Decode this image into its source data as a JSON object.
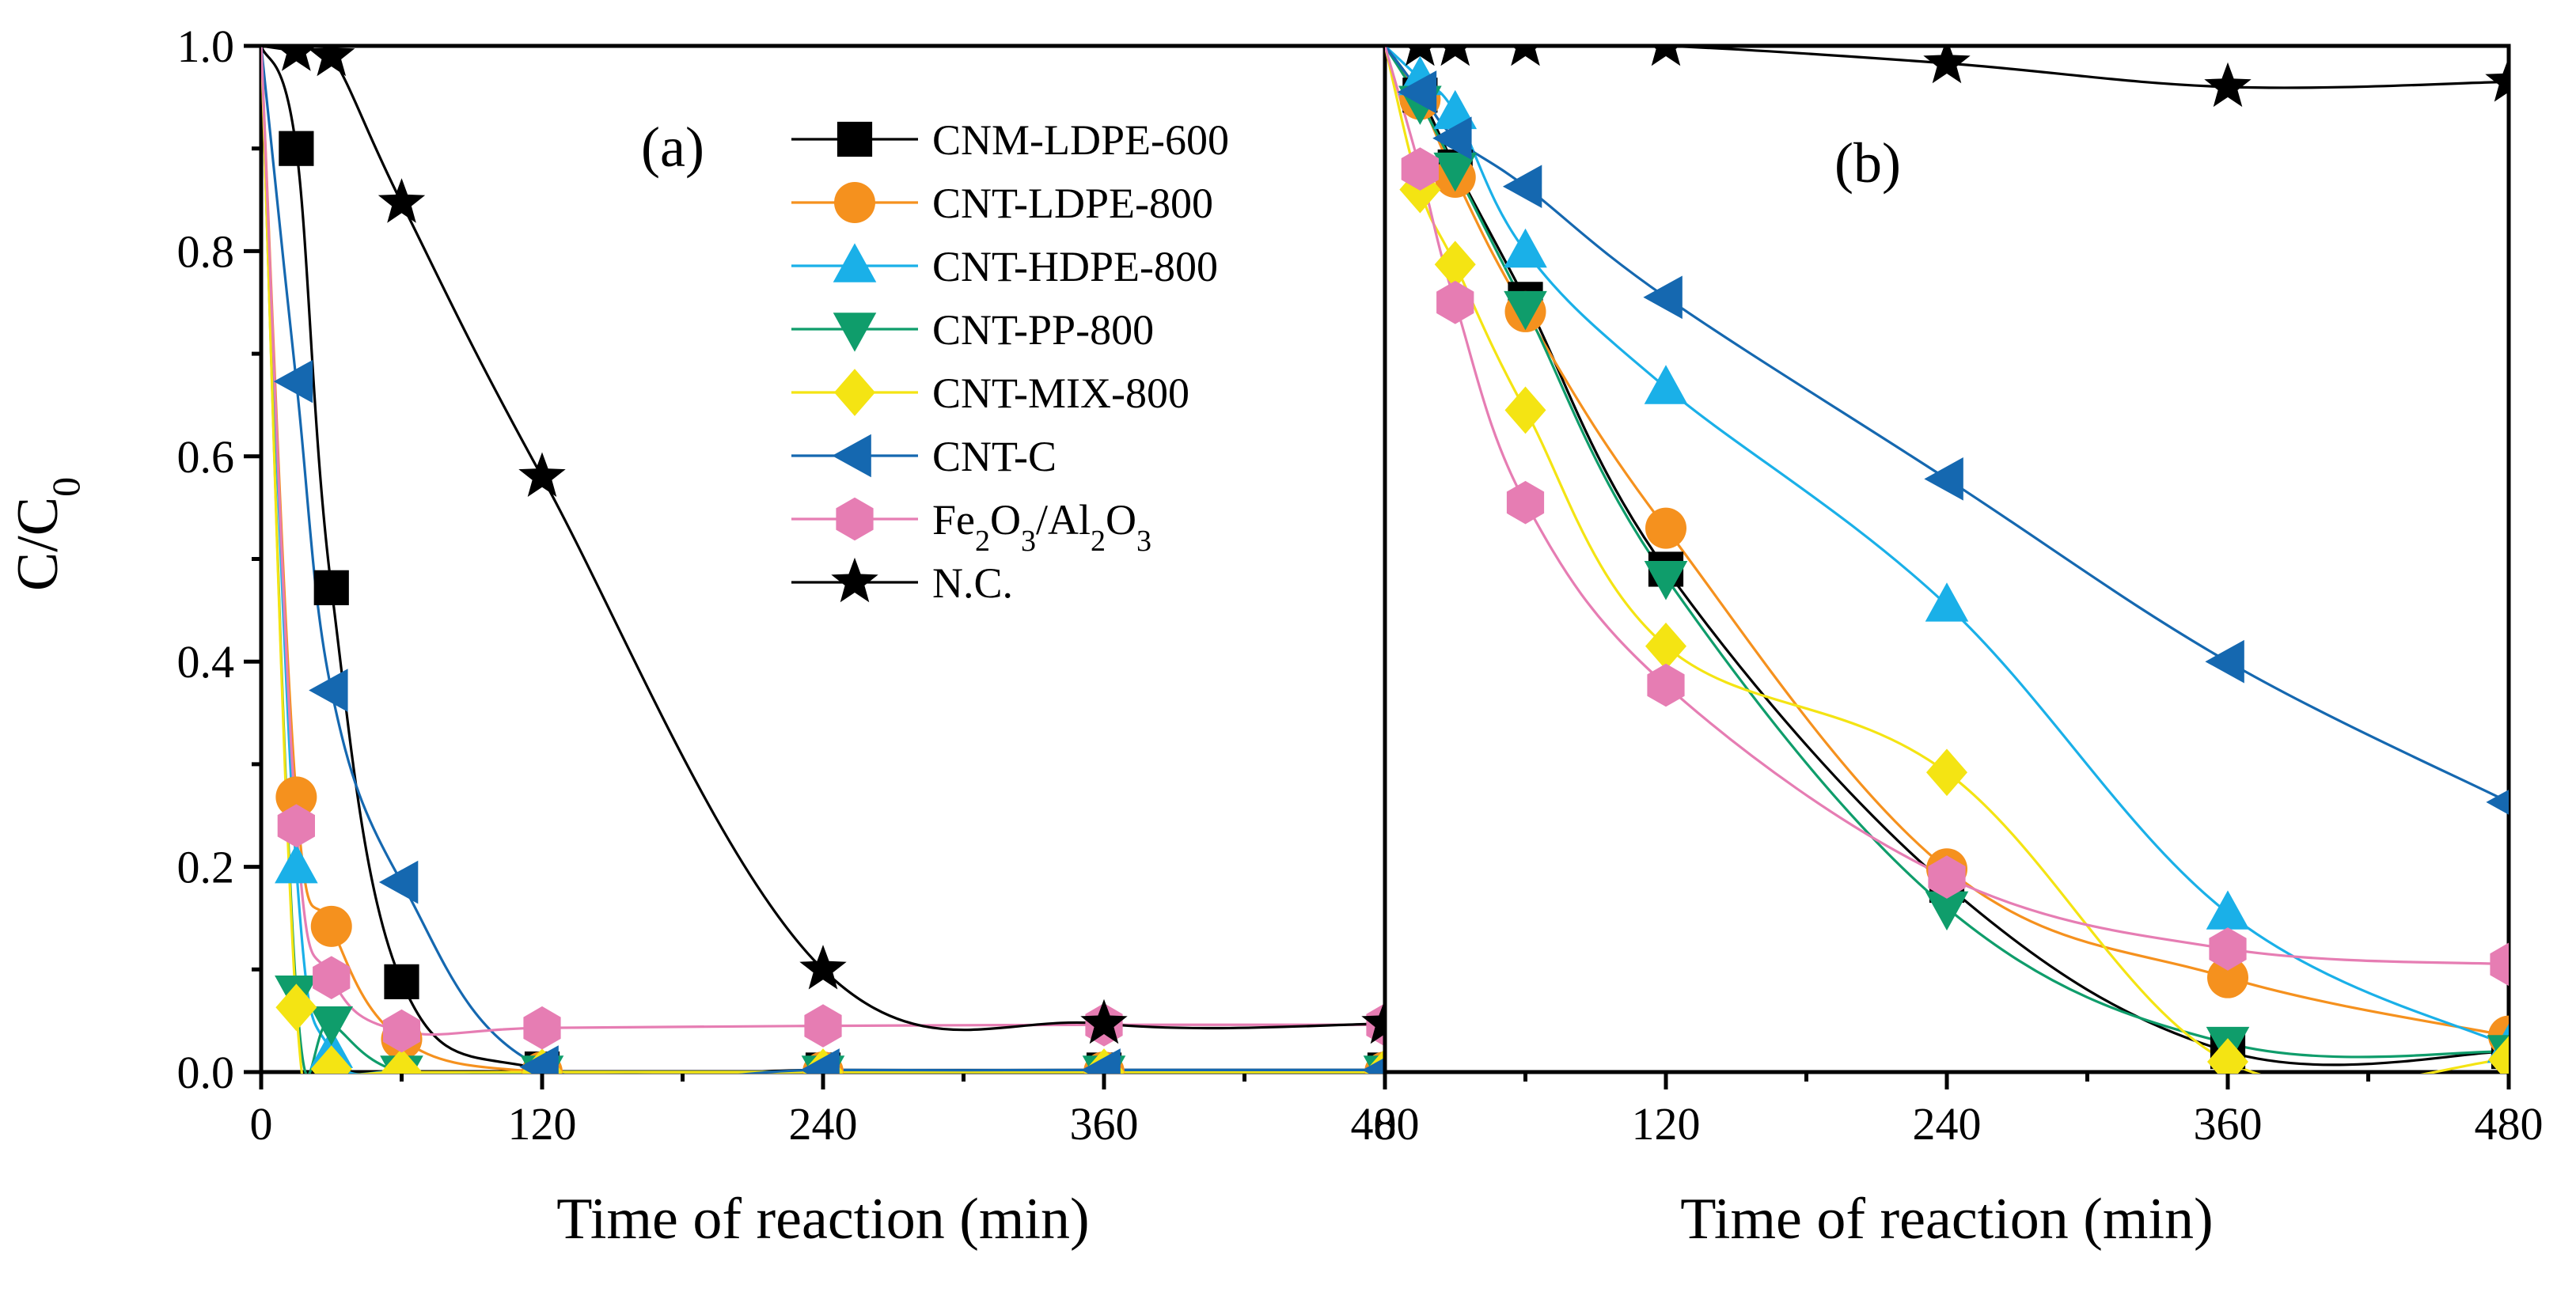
{
  "chart_data": {
    "type": "line",
    "ylabel": "C/C0",
    "ylabel_main": "C/C",
    "ylabel_sub": "0",
    "ylim": [
      0,
      1.0
    ],
    "yticks": [
      "0.0",
      "0.2",
      "0.4",
      "0.6",
      "0.8",
      "1.0"
    ],
    "legend_placement": "top-right of panel (a)",
    "panels": [
      {
        "label": "(a)",
        "xlabel": "Time of reaction (min)",
        "xlim": [
          0,
          480
        ],
        "xticks": [
          "0",
          "120",
          "240",
          "360",
          "480"
        ],
        "x": [
          0,
          15,
          30,
          60,
          120,
          240,
          360,
          480
        ],
        "series": [
          {
            "name": "CNM-LDPE-600",
            "values": [
              1.0,
              0.9,
              0.472,
              0.088,
              0.003,
              0.002,
              0.002,
              0.002
            ]
          },
          {
            "name": "CNT-LDPE-800",
            "values": [
              1.0,
              0.268,
              0.142,
              0.032,
              0.0,
              0.0,
              0.0,
              0.0
            ]
          },
          {
            "name": "CNT-HDPE-800",
            "values": [
              1.0,
              0.2,
              0.02,
              0.0,
              0.0,
              0.0,
              0.0,
              0.0
            ]
          },
          {
            "name": "CNT-PP-800",
            "values": [
              1.0,
              0.078,
              0.048,
              0.0,
              0.0,
              0.0,
              0.0,
              0.0
            ]
          },
          {
            "name": "CNT-MIX-800",
            "values": [
              1.0,
              0.063,
              0.003,
              0.0,
              0.0,
              0.0,
              0.0,
              0.0
            ]
          },
          {
            "name": "CNT-C",
            "values": [
              1.0,
              0.673,
              0.372,
              0.185,
              0.005,
              0.002,
              0.002,
              0.002
            ]
          },
          {
            "name": "Fe2O3/Al2O3",
            "values": [
              1.0,
              0.24,
              0.092,
              0.04,
              0.043,
              0.045,
              0.046,
              0.046
            ]
          },
          {
            "name": "N.C.",
            "values": [
              1.0,
              0.995,
              0.99,
              0.847,
              0.58,
              0.1,
              0.047,
              0.047
            ]
          }
        ]
      },
      {
        "label": "(b)",
        "xlabel": "Time of reaction (min)",
        "xlim": [
          0,
          480
        ],
        "xticks": [
          "0",
          "120",
          "240",
          "360",
          "480"
        ],
        "x": [
          0,
          15,
          30,
          60,
          120,
          240,
          360,
          480
        ],
        "series": [
          {
            "name": "CNM-LDPE-600",
            "values": [
              1.0,
              0.952,
              0.882,
              0.753,
              0.49,
              0.182,
              0.02,
              0.02
            ]
          },
          {
            "name": "CNT-LDPE-800",
            "values": [
              1.0,
              0.948,
              0.872,
              0.741,
              0.53,
              0.198,
              0.092,
              0.035
            ]
          },
          {
            "name": "CNT-HDPE-800",
            "values": [
              1.0,
              0.968,
              0.935,
              0.8,
              0.667,
              0.455,
              0.155,
              0.025
            ]
          },
          {
            "name": "CNT-PP-800",
            "values": [
              1.0,
              0.945,
              0.88,
              0.745,
              0.482,
              0.16,
              0.028,
              0.02
            ]
          },
          {
            "name": "CNT-MIX-800",
            "values": [
              1.0,
              0.86,
              0.787,
              0.645,
              0.415,
              0.292,
              0.01,
              0.012
            ]
          },
          {
            "name": "CNT-C",
            "values": [
              1.0,
              0.955,
              0.91,
              0.863,
              0.755,
              0.578,
              0.4,
              0.263
            ]
          },
          {
            "name": "Fe2O3/Al2O3",
            "values": [
              1.0,
              0.88,
              0.75,
              0.555,
              0.377,
              0.19,
              0.12,
              0.105
            ]
          },
          {
            "name": "N.C.",
            "values": [
              1.0,
              1.0,
              1.0,
              1.0,
              1.0,
              0.983,
              0.96,
              0.965
            ]
          }
        ]
      }
    ],
    "legend": [
      {
        "name": "CNM-LDPE-600",
        "main": "CNM-LDPE-600",
        "color": "#000000",
        "marker": "square"
      },
      {
        "name": "CNT-LDPE-800",
        "main": "CNT-LDPE-800",
        "color": "#F5911E",
        "marker": "circle"
      },
      {
        "name": "CNT-HDPE-800",
        "main": "CNT-HDPE-800",
        "color": "#1AB0E8",
        "marker": "triangle-up"
      },
      {
        "name": "CNT-PP-800",
        "main": "CNT-PP-800",
        "color": "#0F9D6B",
        "marker": "triangle-down"
      },
      {
        "name": "CNT-MIX-800",
        "main": "CNT-MIX-800",
        "color": "#F4E413",
        "marker": "diamond"
      },
      {
        "name": "CNT-C",
        "main": "CNT-C",
        "color": "#1568B0",
        "marker": "triangle-left"
      },
      {
        "name": "Fe2O3/Al2O3",
        "main": "Fe2O3/Al2O3",
        "color": "#E67DB3",
        "marker": "hexagon"
      },
      {
        "name": "N.C.",
        "main": "N.C.",
        "color": "#000000",
        "marker": "star"
      }
    ]
  }
}
